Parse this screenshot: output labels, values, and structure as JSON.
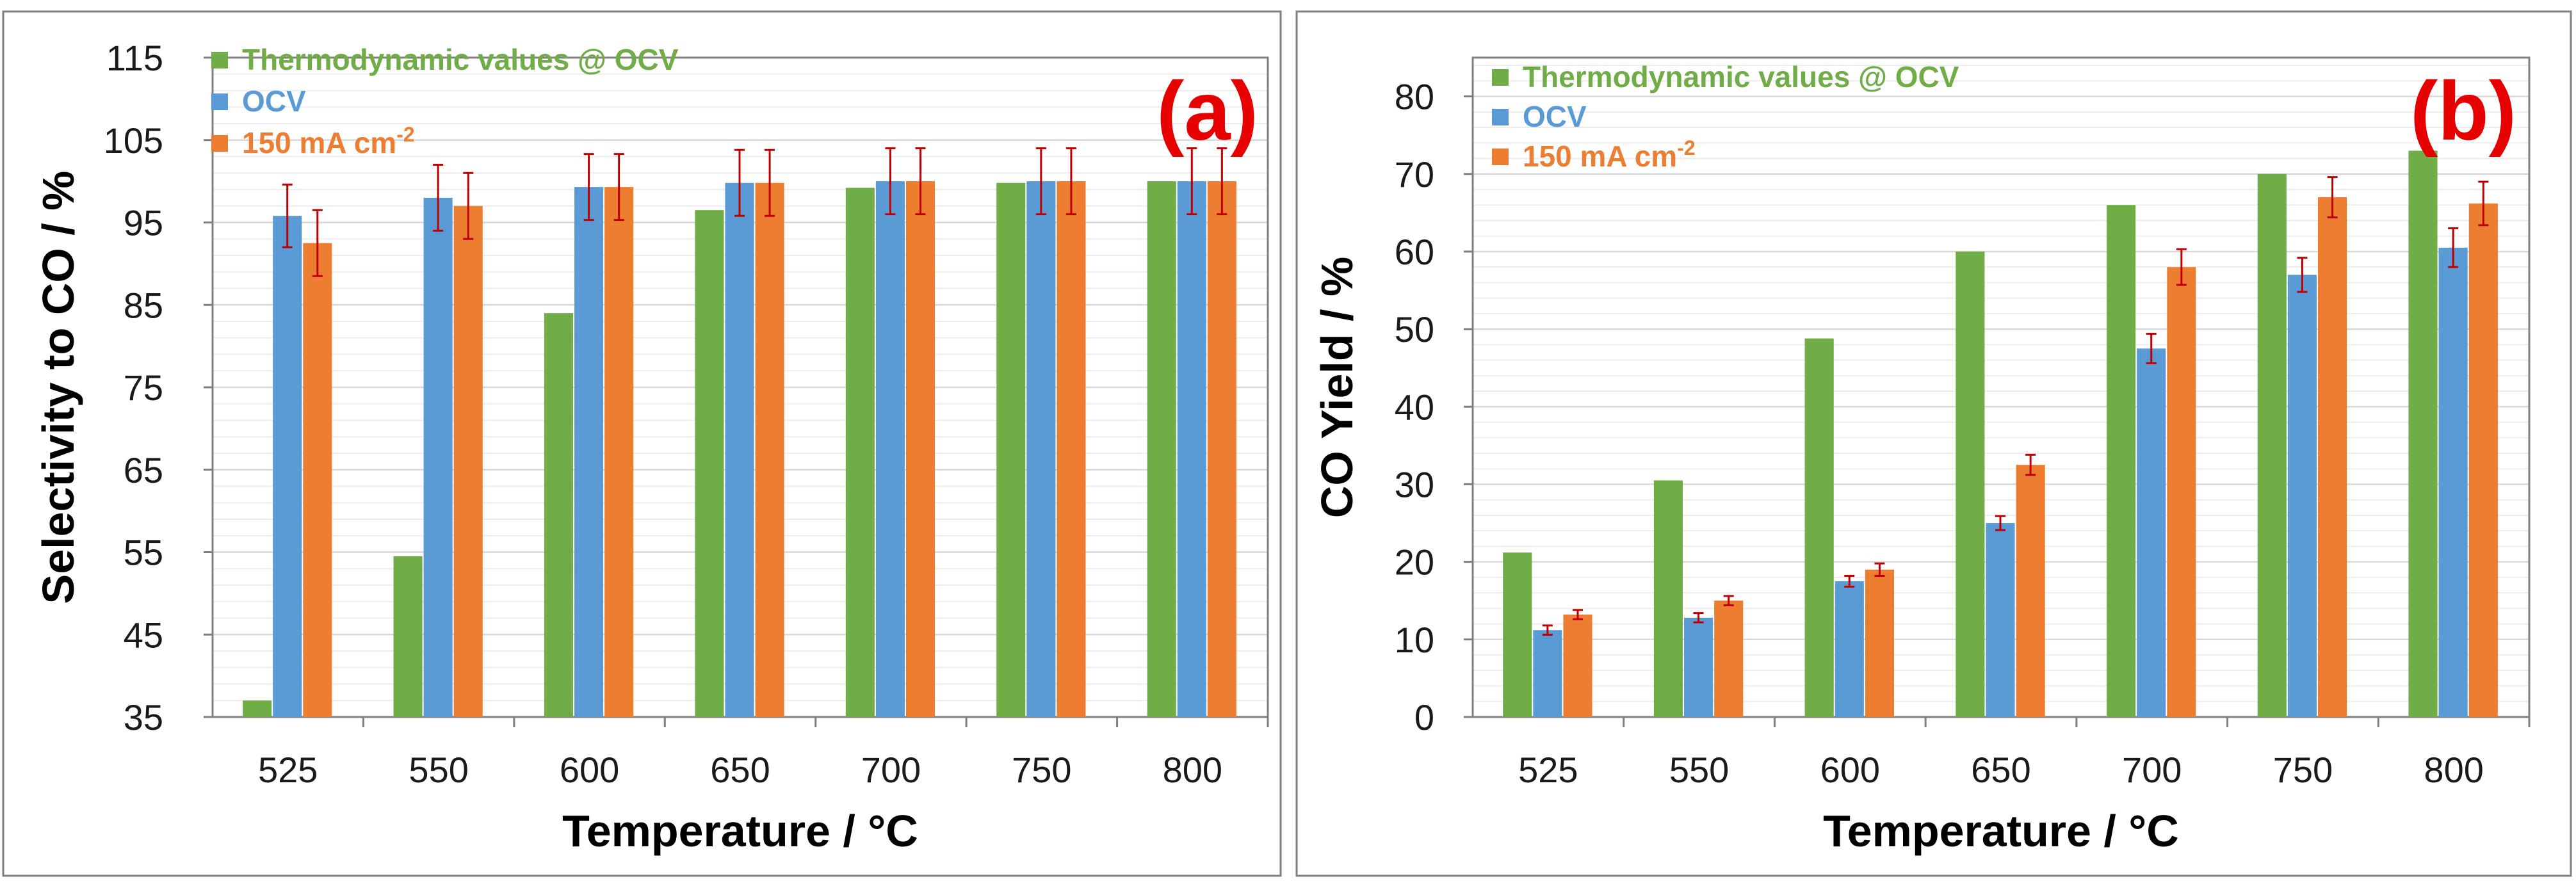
{
  "colors": {
    "thermo": "#70AD47",
    "ocv": "#5B9BD5",
    "ma150": "#ED7D31",
    "panel_label": "#E60000",
    "error_bar": "#C00000",
    "grid": "#D9D9D9",
    "axis": "#7F7F7F"
  },
  "chart_data": [
    {
      "type": "bar",
      "panel_label": "(a)",
      "xlabel": "Temperature / °C",
      "ylabel": "Selectivity to CO / %",
      "ylim": [
        35,
        115
      ],
      "ytick_step": 10,
      "minor_grid_step": 2,
      "yticks": [
        "35",
        "45",
        "55",
        "65",
        "75",
        "85",
        "95",
        "105",
        "115"
      ],
      "categories": [
        "525",
        "550",
        "600",
        "650",
        "700",
        "750",
        "800"
      ],
      "legend_position": "top-left",
      "series": [
        {
          "name": "Thermodynamic values @ OCV",
          "color_key": "thermo",
          "values": [
            37,
            54.5,
            84,
            96.5,
            99.2,
            99.8,
            100
          ]
        },
        {
          "name": "OCV",
          "color_key": "ocv",
          "values": [
            95.8,
            98,
            99.3,
            99.8,
            100,
            100,
            100
          ],
          "errors": [
            3.8,
            4,
            4,
            4,
            4,
            4,
            4
          ]
        },
        {
          "name": "150 mA cm",
          "name_superscript": "-2",
          "color_key": "ma150",
          "values": [
            92.5,
            97,
            99.3,
            99.8,
            100,
            100,
            100
          ],
          "errors": [
            4,
            4,
            4,
            4,
            4,
            4,
            4
          ]
        }
      ]
    },
    {
      "type": "bar",
      "panel_label": "(b)",
      "xlabel": "Temperature / °C",
      "ylabel": "CO Yield / %",
      "ylim": [
        0,
        85
      ],
      "ytick_step": 10,
      "minor_grid_step": 2,
      "yticks": [
        "0",
        "10",
        "20",
        "30",
        "40",
        "50",
        "60",
        "70",
        "80"
      ],
      "categories": [
        "525",
        "550",
        "600",
        "650",
        "700",
        "750",
        "800"
      ],
      "legend_position": "top-left",
      "series": [
        {
          "name": "Thermodynamic values @ OCV",
          "color_key": "thermo",
          "values": [
            21.2,
            30.5,
            48.8,
            60,
            66,
            70,
            73
          ]
        },
        {
          "name": "OCV",
          "color_key": "ocv",
          "values": [
            11.2,
            12.8,
            17.5,
            25,
            47.5,
            57,
            60.5
          ],
          "errors": [
            0.6,
            0.6,
            0.7,
            0.9,
            1.9,
            2.2,
            2.5
          ]
        },
        {
          "name": "150 mA cm",
          "name_superscript": "-2",
          "color_key": "ma150",
          "values": [
            13.2,
            15,
            19,
            32.5,
            58,
            67,
            66.2
          ],
          "errors": [
            0.6,
            0.6,
            0.8,
            1.3,
            2.3,
            2.6,
            2.8
          ]
        }
      ]
    }
  ]
}
